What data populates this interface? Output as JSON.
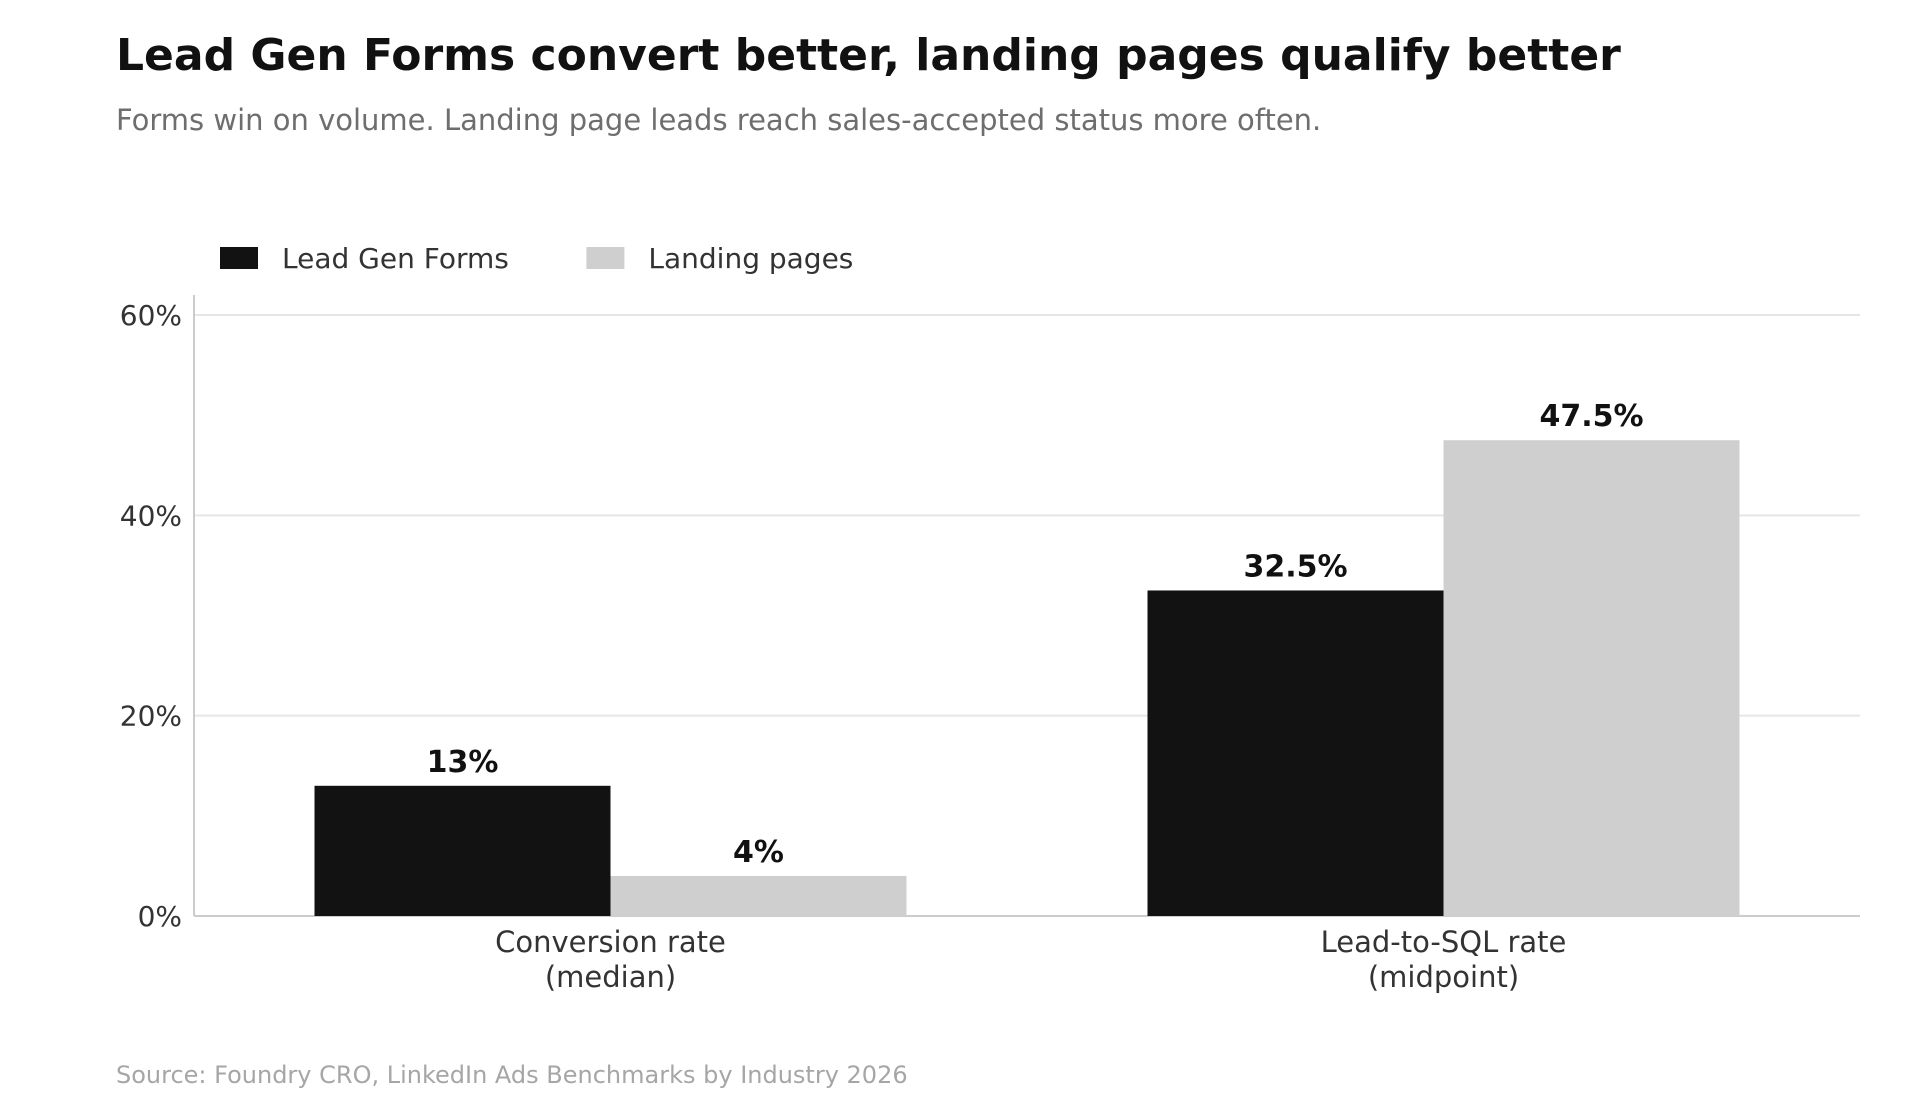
{
  "header": {
    "title": "Lead Gen Forms convert better, landing pages qualify better",
    "subtitle": "Forms win on volume. Landing page leads reach sales-accepted status more often."
  },
  "footer": {
    "source": "Source: Foundry CRO, LinkedIn Ads Benchmarks by Industry 2026"
  },
  "chart_data": {
    "type": "bar",
    "title": "Lead Gen Forms convert better, landing pages qualify better",
    "subtitle": "Forms win on volume. Landing page leads reach sales-accepted status more often.",
    "categories": [
      [
        "Conversion rate",
        "(median)"
      ],
      [
        "Lead-to-SQL rate",
        "(midpoint)"
      ]
    ],
    "series": [
      {
        "name": "Lead Gen Forms",
        "color": "#121212",
        "values": [
          13,
          32.5
        ],
        "labels": [
          "13%",
          "32.5%"
        ]
      },
      {
        "name": "Landing pages",
        "color": "#cfcfcf",
        "values": [
          4,
          47.5
        ],
        "labels": [
          "4%",
          "47.5%"
        ]
      }
    ],
    "ylim": [
      0,
      62
    ],
    "yticks": [
      0,
      20,
      40,
      60
    ],
    "ytick_labels": [
      "0%",
      "20%",
      "40%",
      "60%"
    ],
    "xlabel": "",
    "ylabel": "",
    "grid": true,
    "legend_position": "top-left"
  }
}
